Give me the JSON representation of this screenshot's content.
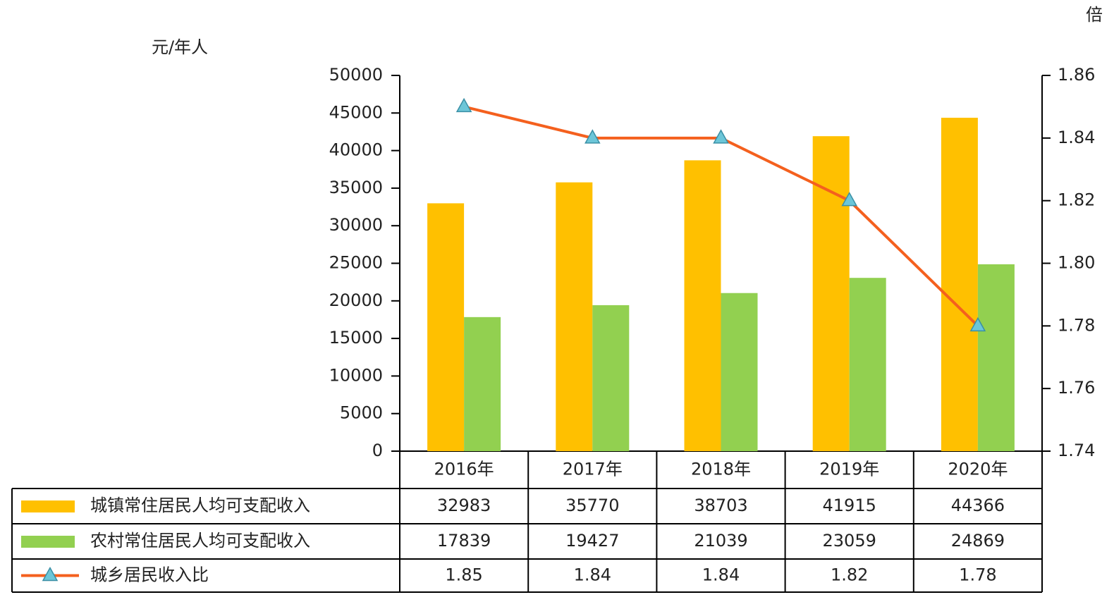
{
  "chart_data": {
    "type": "bar",
    "y_axis_label": "元/年人",
    "y2_axis_label": "倍",
    "categories": [
      "2016年",
      "2017年",
      "2018年",
      "2019年",
      "2020年"
    ],
    "series": [
      {
        "name": "城镇常住居民人均可支配收入",
        "type": "bar",
        "color": "#FFC000",
        "values": [
          32983,
          35770,
          38703,
          41915,
          44366
        ]
      },
      {
        "name": "农村常住居民人均可支配收入",
        "type": "bar",
        "color": "#92D050",
        "values": [
          17839,
          19427,
          21039,
          23059,
          24869
        ]
      },
      {
        "name": "城乡居民收入比",
        "type": "line",
        "axis": "y2",
        "color": "#F4601E",
        "marker_color": "#6CC6D8",
        "values": [
          1.85,
          1.84,
          1.84,
          1.82,
          1.78
        ]
      }
    ],
    "ylim": [
      0,
      50000
    ],
    "yticks": [
      0,
      5000,
      10000,
      15000,
      20000,
      25000,
      30000,
      35000,
      40000,
      45000,
      50000
    ],
    "y2lim": [
      1.74,
      1.86
    ],
    "y2ticks": [
      1.74,
      1.76,
      1.78,
      {
        "value": 1.8,
        "label": "1.80"
      },
      1.82,
      1.84,
      1.86
    ],
    "grid": false,
    "legend": "table"
  }
}
